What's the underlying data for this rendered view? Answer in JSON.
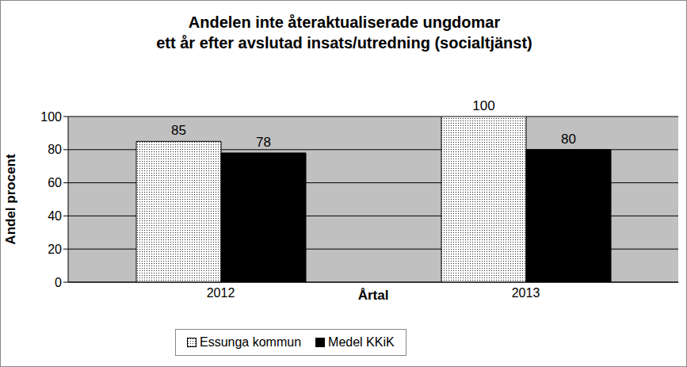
{
  "chart_data": {
    "type": "bar",
    "title": "Andelen inte återaktualiserade ungdomar\nett år efter avslutad insats/utredning (socialtjänst)",
    "xlabel": "Årtal",
    "ylabel": "Andel procent",
    "categories": [
      "2012",
      "2013"
    ],
    "series": [
      {
        "name": "Essunga kommun",
        "color": "#ffffff",
        "values": [
          85,
          100
        ]
      },
      {
        "name": "Medel KKiK",
        "color": "#000000",
        "values": [
          78,
          80
        ]
      }
    ],
    "ylim": [
      0,
      100
    ],
    "yticks": [
      0,
      20,
      40,
      60,
      80,
      100
    ],
    "grid": true,
    "data_labels": true,
    "legend": "bottom"
  }
}
